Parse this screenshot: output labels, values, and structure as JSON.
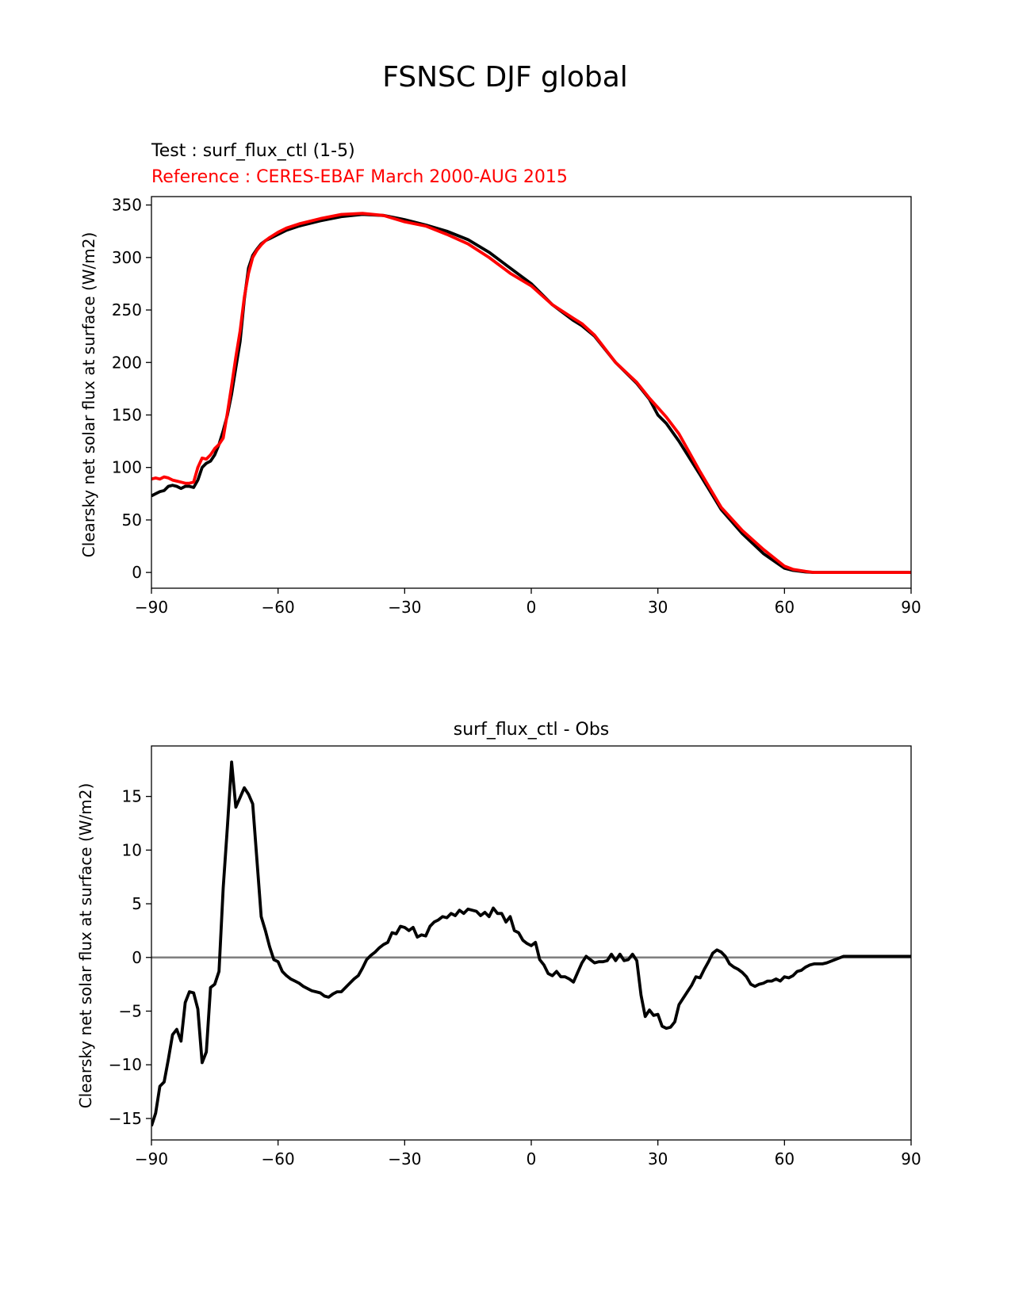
{
  "figure": {
    "suptitle": "FSNSC DJF global"
  },
  "colors": {
    "test": "#000000",
    "reference": "#ff0000",
    "zero_line": "#808080"
  },
  "chart_data": [
    {
      "type": "line",
      "title_test": "Test : surf_flux_ctl (1-5)",
      "title_reference": "Reference : CERES-EBAF March 2000-AUG 2015",
      "xlabel": "",
      "ylabel": "Clearsky net solar flux at surface (W/m2)",
      "xlim": [
        -90,
        90
      ],
      "ylim": [
        -15,
        358
      ],
      "xticks": [
        -90,
        -60,
        -30,
        0,
        30,
        60,
        90
      ],
      "xtick_labels": [
        "−90",
        "−60",
        "−30",
        "0",
        "30",
        "60",
        "90"
      ],
      "yticks": [
        0,
        50,
        100,
        150,
        200,
        250,
        300,
        350
      ],
      "ytick_labels": [
        "0",
        "50",
        "100",
        "150",
        "200",
        "250",
        "300",
        "350"
      ],
      "grid": false,
      "series": [
        {
          "role": "test",
          "x": [
            -90,
            -89,
            -88,
            -87,
            -86,
            -85,
            -84,
            -83,
            -82,
            -81,
            -80,
            -79,
            -78,
            -77,
            -76,
            -75,
            -74,
            -73,
            -72,
            -71,
            -70,
            -69,
            -68,
            -67,
            -66,
            -65,
            -64,
            -63,
            -62,
            -60,
            -58,
            -55,
            -50,
            -45,
            -40,
            -35,
            -30,
            -25,
            -20,
            -15,
            -10,
            -5,
            0,
            5,
            10,
            12,
            15,
            20,
            25,
            28,
            30,
            32,
            35,
            40,
            45,
            50,
            55,
            60,
            62,
            65,
            67,
            70,
            75,
            80,
            85,
            90
          ],
          "y": [
            73,
            75,
            77,
            78,
            82,
            83,
            82,
            80,
            82,
            82,
            81,
            88,
            100,
            104,
            106,
            112,
            122,
            135,
            150,
            170,
            195,
            220,
            260,
            290,
            302,
            308,
            313,
            316,
            318,
            322,
            326,
            330,
            335,
            339,
            341,
            340,
            336,
            331,
            325,
            317,
            305,
            290,
            275,
            255,
            240,
            235,
            225,
            200,
            180,
            165,
            150,
            142,
            125,
            93,
            60,
            37,
            18,
            4,
            2,
            0.5,
            0,
            0,
            0,
            0,
            0,
            0
          ]
        },
        {
          "role": "reference",
          "x": [
            -90,
            -89,
            -88,
            -87,
            -86,
            -85,
            -84,
            -83,
            -82,
            -81,
            -80,
            -79,
            -78,
            -77,
            -76,
            -75,
            -74,
            -73,
            -72,
            -71,
            -70,
            -69,
            -68,
            -67,
            -66,
            -65,
            -64,
            -63,
            -62,
            -60,
            -58,
            -55,
            -50,
            -45,
            -40,
            -35,
            -30,
            -25,
            -20,
            -15,
            -10,
            -5,
            0,
            5,
            10,
            12,
            15,
            20,
            25,
            28,
            30,
            32,
            35,
            40,
            45,
            50,
            55,
            60,
            62,
            65,
            67,
            70,
            75,
            80,
            85,
            90
          ],
          "y": [
            89,
            90,
            89,
            91,
            90,
            88,
            87,
            86,
            85,
            85,
            86,
            100,
            109,
            108,
            112,
            118,
            122,
            128,
            152,
            178,
            205,
            230,
            262,
            285,
            300,
            307,
            312,
            316,
            319,
            324,
            328,
            332,
            337,
            341,
            342,
            340,
            334,
            330,
            322,
            313,
            300,
            285,
            273,
            255,
            242,
            237,
            226,
            200,
            181,
            166,
            157,
            148,
            132,
            96,
            62,
            40,
            22,
            6,
            3,
            1,
            0,
            0,
            0,
            0,
            0,
            0
          ]
        }
      ]
    },
    {
      "type": "line",
      "title": "surf_flux_ctl - Obs",
      "xlabel": "",
      "ylabel": "Clearsky net solar flux at surface (W/m2)",
      "xlim": [
        -90,
        90
      ],
      "ylim": [
        -17,
        19.7
      ],
      "xticks": [
        -90,
        -60,
        -30,
        0,
        30,
        60,
        90
      ],
      "xtick_labels": [
        "−90",
        "−60",
        "−30",
        "0",
        "30",
        "60",
        "90"
      ],
      "yticks": [
        -15,
        -10,
        -5,
        0,
        5,
        10,
        15
      ],
      "ytick_labels": [
        "−15",
        "−10",
        "−5",
        "0",
        "5",
        "10",
        "15"
      ],
      "grid": false,
      "zero_line": 0,
      "series": [
        {
          "role": "difference",
          "x": [
            -90,
            -89,
            -88,
            -87,
            -86,
            -85,
            -84,
            -83,
            -82,
            -81,
            -80,
            -79,
            -78,
            -77,
            -76,
            -75,
            -74,
            -73,
            -72,
            -71,
            -70,
            -69,
            -68,
            -67,
            -66,
            -65,
            -64,
            -63,
            -62,
            -61,
            -60,
            -59,
            -58,
            -57,
            -56,
            -55,
            -54,
            -53,
            -52,
            -51,
            -50,
            -49,
            -48,
            -47,
            -46,
            -45,
            -44,
            -43,
            -42,
            -41,
            -40,
            -39,
            -38,
            -37,
            -36,
            -35,
            -34,
            -33,
            -32,
            -31,
            -30,
            -29,
            -28,
            -27,
            -26,
            -25,
            -24,
            -23,
            -22,
            -21,
            -20,
            -19,
            -18,
            -17,
            -16,
            -15,
            -14,
            -13,
            -12,
            -11,
            -10,
            -9,
            -8,
            -7,
            -6,
            -5,
            -4,
            -3,
            -2,
            -1,
            0,
            1,
            2,
            3,
            4,
            5,
            6,
            7,
            8,
            9,
            10,
            11,
            12,
            13,
            14,
            15,
            16,
            17,
            18,
            19,
            20,
            21,
            22,
            23,
            24,
            25,
            26,
            27,
            28,
            29,
            30,
            31,
            32,
            33,
            34,
            35,
            36,
            37,
            38,
            39,
            40,
            41,
            42,
            43,
            44,
            45,
            46,
            47,
            48,
            49,
            50,
            51,
            52,
            53,
            54,
            55,
            56,
            57,
            58,
            59,
            60,
            61,
            62,
            63,
            64,
            65,
            66,
            67,
            68,
            69,
            70,
            72,
            74,
            76,
            78,
            80,
            85,
            90
          ],
          "y": [
            -15.7,
            -14.5,
            -12,
            -11.6,
            -9.5,
            -7.2,
            -6.7,
            -7.8,
            -4.2,
            -3.2,
            -3.3,
            -4.8,
            -9.8,
            -8.8,
            -2.8,
            -2.5,
            -1.3,
            6.5,
            12.2,
            18.2,
            14,
            14.9,
            15.8,
            15.2,
            14.3,
            9,
            3.8,
            2.5,
            1,
            -0.2,
            -0.4,
            -1.3,
            -1.7,
            -2,
            -2.2,
            -2.4,
            -2.7,
            -2.9,
            -3.1,
            -3.2,
            -3.3,
            -3.6,
            -3.7,
            -3.4,
            -3.2,
            -3.2,
            -2.8,
            -2.4,
            -2,
            -1.7,
            -1,
            -0.2,
            0.2,
            0.5,
            0.9,
            1.2,
            1.4,
            2.3,
            2.2,
            2.9,
            2.8,
            2.5,
            2.8,
            1.9,
            2.1,
            2,
            2.9,
            3.3,
            3.5,
            3.8,
            3.7,
            4.1,
            3.9,
            4.4,
            4.1,
            4.5,
            4.4,
            4.3,
            3.9,
            4.2,
            3.8,
            4.6,
            4.1,
            4.1,
            3.3,
            3.8,
            2.5,
            2.3,
            1.6,
            1.3,
            1.1,
            1.4,
            -0.2,
            -0.7,
            -1.5,
            -1.7,
            -1.3,
            -1.8,
            -1.8,
            -2,
            -2.3,
            -1.4,
            -0.5,
            0.1,
            -0.2,
            -0.5,
            -0.4,
            -0.4,
            -0.3,
            0.3,
            -0.3,
            0.3,
            -0.3,
            -0.2,
            0.3,
            -0.3,
            -3.5,
            -5.5,
            -4.9,
            -5.4,
            -5.3,
            -6.4,
            -6.6,
            -6.5,
            -6,
            -4.4,
            -3.8,
            -3.2,
            -2.6,
            -1.8,
            -1.9,
            -1.1,
            -0.4,
            0.4,
            0.7,
            0.5,
            0.1,
            -0.6,
            -0.9,
            -1.1,
            -1.4,
            -1.8,
            -2.5,
            -2.7,
            -2.5,
            -2.4,
            -2.2,
            -2.2,
            -2,
            -2.2,
            -1.8,
            -1.9,
            -1.7,
            -1.3,
            -1.2,
            -0.9,
            -0.7,
            -0.6,
            -0.6,
            -0.6,
            -0.5,
            -0.2,
            0.1,
            0.1,
            0.1,
            0.1,
            0.1,
            0.1
          ]
        }
      ]
    }
  ]
}
